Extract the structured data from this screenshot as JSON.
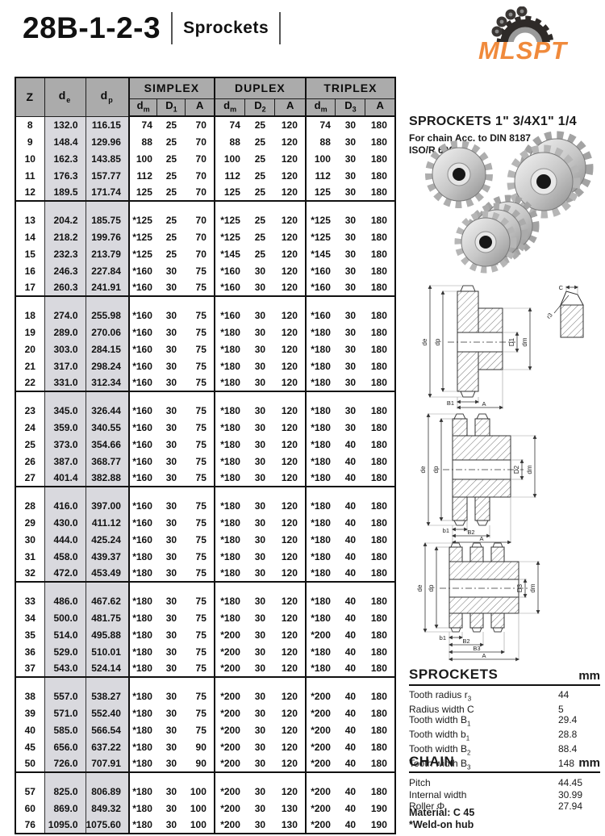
{
  "page": {
    "title": "28B-1-2-3",
    "subtitle": "Sprockets"
  },
  "logo": {
    "text": "MLSPT",
    "accent_color": "#f08a3c"
  },
  "product": {
    "heading": "SPROCKETS 1\" 3/4X1\" 1/4",
    "chain_note": "For chain Acc. to DIN 8187",
    "standard": "ISO/R 606"
  },
  "table": {
    "columns": {
      "z": "Z",
      "de": {
        "base": "d",
        "sub": "e"
      },
      "dp": {
        "base": "d",
        "sub": "p"
      },
      "groups": [
        "SIMPLEX",
        "DUPLEX",
        "TRIPLEX"
      ],
      "subcols": [
        {
          "base": "d",
          "sub": "m"
        },
        {
          "base": "D",
          "sub": "1"
        },
        {
          "base": "A",
          "sub": ""
        },
        {
          "base": "d",
          "sub": "m"
        },
        {
          "base": "D",
          "sub": "2"
        },
        {
          "base": "A",
          "sub": ""
        },
        {
          "base": "d",
          "sub": "m"
        },
        {
          "base": "D",
          "sub": "3"
        },
        {
          "base": "A",
          "sub": ""
        }
      ]
    },
    "row_groups": [
      {
        "rows": [
          [
            "8",
            "132.0",
            "116.15",
            "74",
            "25",
            "70",
            "74",
            "25",
            "120",
            "74",
            "30",
            "180"
          ],
          [
            "9",
            "148.4",
            "129.96",
            "88",
            "25",
            "70",
            "88",
            "25",
            "120",
            "88",
            "30",
            "180"
          ],
          [
            "10",
            "162.3",
            "143.85",
            "100",
            "25",
            "70",
            "100",
            "25",
            "120",
            "100",
            "30",
            "180"
          ],
          [
            "11",
            "176.3",
            "157.77",
            "112",
            "25",
            "70",
            "112",
            "25",
            "120",
            "112",
            "30",
            "180"
          ],
          [
            "12",
            "189.5",
            "171.74",
            "125",
            "25",
            "70",
            "125",
            "25",
            "120",
            "125",
            "30",
            "180"
          ]
        ]
      },
      {
        "rows": [
          [
            "13",
            "204.2",
            "185.75",
            "*125",
            "25",
            "70",
            "*125",
            "25",
            "120",
            "*125",
            "30",
            "180"
          ],
          [
            "14",
            "218.2",
            "199.76",
            "*125",
            "25",
            "70",
            "*125",
            "25",
            "120",
            "*125",
            "30",
            "180"
          ],
          [
            "15",
            "232.3",
            "213.79",
            "*125",
            "25",
            "70",
            "*145",
            "25",
            "120",
            "*145",
            "30",
            "180"
          ],
          [
            "16",
            "246.3",
            "227.84",
            "*160",
            "30",
            "75",
            "*160",
            "30",
            "120",
            "*160",
            "30",
            "180"
          ],
          [
            "17",
            "260.3",
            "241.91",
            "*160",
            "30",
            "75",
            "*160",
            "30",
            "120",
            "*160",
            "30",
            "180"
          ]
        ]
      },
      {
        "rows": [
          [
            "18",
            "274.0",
            "255.98",
            "*160",
            "30",
            "75",
            "*160",
            "30",
            "120",
            "*160",
            "30",
            "180"
          ],
          [
            "19",
            "289.0",
            "270.06",
            "*160",
            "30",
            "75",
            "*180",
            "30",
            "120",
            "*180",
            "30",
            "180"
          ],
          [
            "20",
            "303.0",
            "284.15",
            "*160",
            "30",
            "75",
            "*180",
            "30",
            "120",
            "*180",
            "30",
            "180"
          ],
          [
            "21",
            "317.0",
            "298.24",
            "*160",
            "30",
            "75",
            "*180",
            "30",
            "120",
            "*180",
            "30",
            "180"
          ],
          [
            "22",
            "331.0",
            "312.34",
            "*160",
            "30",
            "75",
            "*180",
            "30",
            "120",
            "*180",
            "30",
            "180"
          ]
        ]
      },
      {
        "rows": [
          [
            "23",
            "345.0",
            "326.44",
            "*160",
            "30",
            "75",
            "*180",
            "30",
            "120",
            "*180",
            "30",
            "180"
          ],
          [
            "24",
            "359.0",
            "340.55",
            "*160",
            "30",
            "75",
            "*180",
            "30",
            "120",
            "*180",
            "30",
            "180"
          ],
          [
            "25",
            "373.0",
            "354.66",
            "*160",
            "30",
            "75",
            "*180",
            "30",
            "120",
            "*180",
            "40",
            "180"
          ],
          [
            "26",
            "387.0",
            "368.77",
            "*160",
            "30",
            "75",
            "*180",
            "30",
            "120",
            "*180",
            "40",
            "180"
          ],
          [
            "27",
            "401.4",
            "382.88",
            "*160",
            "30",
            "75",
            "*180",
            "30",
            "120",
            "*180",
            "40",
            "180"
          ]
        ]
      },
      {
        "rows": [
          [
            "28",
            "416.0",
            "397.00",
            "*160",
            "30",
            "75",
            "*180",
            "30",
            "120",
            "*180",
            "40",
            "180"
          ],
          [
            "29",
            "430.0",
            "411.12",
            "*160",
            "30",
            "75",
            "*180",
            "30",
            "120",
            "*180",
            "40",
            "180"
          ],
          [
            "30",
            "444.0",
            "425.24",
            "*160",
            "30",
            "75",
            "*180",
            "30",
            "120",
            "*180",
            "40",
            "180"
          ],
          [
            "31",
            "458.0",
            "439.37",
            "*180",
            "30",
            "75",
            "*180",
            "30",
            "120",
            "*180",
            "40",
            "180"
          ],
          [
            "32",
            "472.0",
            "453.49",
            "*180",
            "30",
            "75",
            "*180",
            "30",
            "120",
            "*180",
            "40",
            "180"
          ]
        ]
      },
      {
        "rows": [
          [
            "33",
            "486.0",
            "467.62",
            "*180",
            "30",
            "75",
            "*180",
            "30",
            "120",
            "*180",
            "40",
            "180"
          ],
          [
            "34",
            "500.0",
            "481.75",
            "*180",
            "30",
            "75",
            "*180",
            "30",
            "120",
            "*180",
            "40",
            "180"
          ],
          [
            "35",
            "514.0",
            "495.88",
            "*180",
            "30",
            "75",
            "*200",
            "30",
            "120",
            "*200",
            "40",
            "180"
          ],
          [
            "36",
            "529.0",
            "510.01",
            "*180",
            "30",
            "75",
            "*200",
            "30",
            "120",
            "*180",
            "40",
            "180"
          ],
          [
            "37",
            "543.0",
            "524.14",
            "*180",
            "30",
            "75",
            "*200",
            "30",
            "120",
            "*180",
            "40",
            "180"
          ]
        ]
      },
      {
        "rows": [
          [
            "38",
            "557.0",
            "538.27",
            "*180",
            "30",
            "75",
            "*200",
            "30",
            "120",
            "*200",
            "40",
            "180"
          ],
          [
            "39",
            "571.0",
            "552.40",
            "*180",
            "30",
            "75",
            "*200",
            "30",
            "120",
            "*200",
            "40",
            "180"
          ],
          [
            "40",
            "585.0",
            "566.54",
            "*180",
            "30",
            "75",
            "*200",
            "30",
            "120",
            "*200",
            "40",
            "180"
          ],
          [
            "45",
            "656.0",
            "637.22",
            "*180",
            "30",
            "90",
            "*200",
            "30",
            "120",
            "*200",
            "40",
            "180"
          ],
          [
            "50",
            "726.0",
            "707.91",
            "*180",
            "30",
            "90",
            "*200",
            "30",
            "120",
            "*200",
            "40",
            "180"
          ]
        ]
      },
      {
        "rows": [
          [
            "57",
            "825.0",
            "806.89",
            "*180",
            "30",
            "100",
            "*200",
            "30",
            "120",
            "*200",
            "40",
            "180"
          ],
          [
            "60",
            "869.0",
            "849.32",
            "*180",
            "30",
            "100",
            "*200",
            "30",
            "130",
            "*200",
            "40",
            "190"
          ],
          [
            "76",
            "1095.0",
            "1075.60",
            "*180",
            "30",
            "100",
            "*200",
            "30",
            "130",
            "*200",
            "40",
            "190"
          ]
        ]
      }
    ]
  },
  "diagrams": {
    "simplex": {
      "de": "de",
      "dp": "dp",
      "bore": "D1",
      "hub": "dm",
      "width1": "B1",
      "overall": "A",
      "tooth_c": "C",
      "tooth_r": "r3"
    },
    "duplex": {
      "de": "de",
      "dp": "dp",
      "bore": "D2",
      "hub": "dm",
      "width1": "b1",
      "width2": "B2",
      "overall": "A"
    },
    "triplex": {
      "de": "de",
      "dp": "dp",
      "bore": "D3",
      "hub": "dm",
      "width1": "b1",
      "width2": "B2",
      "width3": "B3",
      "overall": "A"
    }
  },
  "sprockets_spec": {
    "title": "SPROCKETS",
    "unit": "mm",
    "items": [
      {
        "label": "Tooth radius r",
        "sub": "3",
        "value": "44"
      },
      {
        "label": "Radius width C",
        "sub": "",
        "value": "5"
      },
      {
        "label": "Tooth width B",
        "sub": "1",
        "value": "29.4"
      },
      {
        "label": "Tooth width b",
        "sub": "1",
        "value": "28.8"
      },
      {
        "label": "Tooth width B",
        "sub": "2",
        "value": "88.4"
      },
      {
        "label": "Tooth width B",
        "sub": "3",
        "value": "148"
      }
    ]
  },
  "chain_spec": {
    "title": "CHAIN",
    "unit": "mm",
    "items": [
      {
        "label": "Pitch",
        "sub": "",
        "value": "44.45"
      },
      {
        "label": "Internal width",
        "sub": "",
        "value": "30.99"
      },
      {
        "label": "Roller Φ",
        "sub": "",
        "value": "27.94"
      }
    ]
  },
  "notes": [
    "Material: C 45",
    "*Weld-on hub"
  ]
}
